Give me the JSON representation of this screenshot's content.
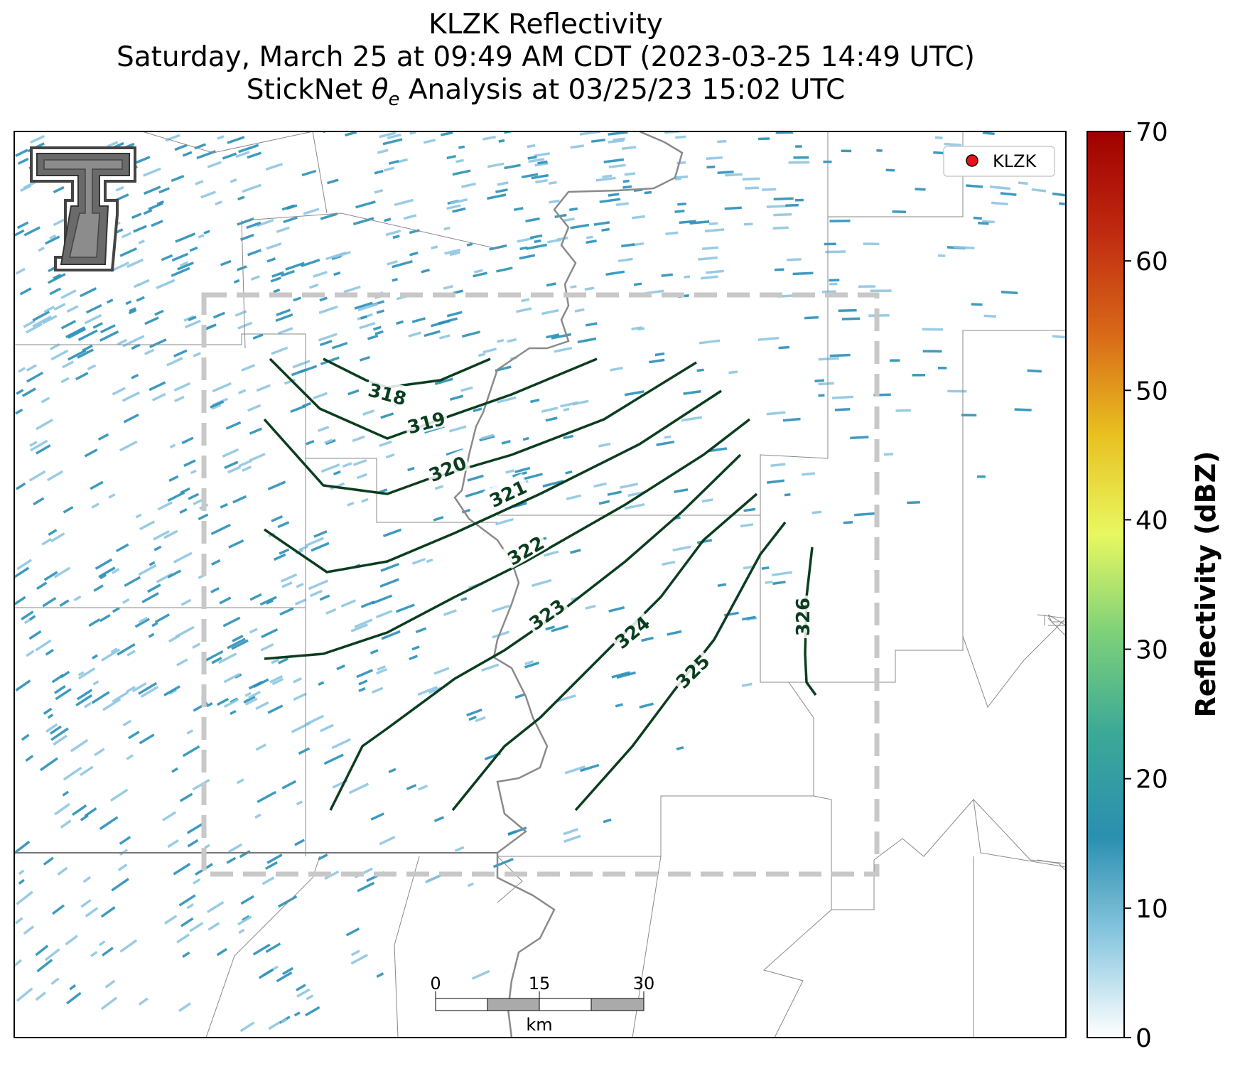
{
  "title": {
    "line1": "KLZK Reflectivity",
    "line2": "Saturday, March 25 at 09:49 AM CDT (2023-03-25 14:49 UTC)",
    "line3_prefix": "StickNet ",
    "line3_symbol": "θ",
    "line3_sub": "e",
    "line3_suffix": " Analysis at 03/25/23 15:02 UTC"
  },
  "legend": {
    "label": "KLZK",
    "marker_color": "#e8101a"
  },
  "logo": {
    "name": "Texas Tech Double T",
    "letter": "T"
  },
  "colorbar": {
    "label": "Reflectivity (dBZ)",
    "ticks": [
      "0",
      "10",
      "20",
      "30",
      "40",
      "50",
      "60",
      "70"
    ],
    "colors": [
      "#ffffff",
      "#8cc8e0",
      "#2a8fb0",
      "#3aa898",
      "#7cd07a",
      "#e8f860",
      "#e8c020",
      "#d86818",
      "#c02a10",
      "#a00000"
    ]
  },
  "scale_bar": {
    "ticks": [
      "0",
      "15",
      "30"
    ],
    "unit": "km"
  },
  "contours": {
    "color": "#0b3d1f",
    "labels": [
      "318",
      "319",
      "320",
      "321",
      "322",
      "323",
      "324",
      "325",
      "326"
    ]
  },
  "colors": {
    "radar": "#2a90b8",
    "radar_light": "#8ec6e2",
    "county_lines": "#888888",
    "state_line": "#777777",
    "river": "#8a8a8a",
    "analysis_box": "#c8c8c8"
  }
}
